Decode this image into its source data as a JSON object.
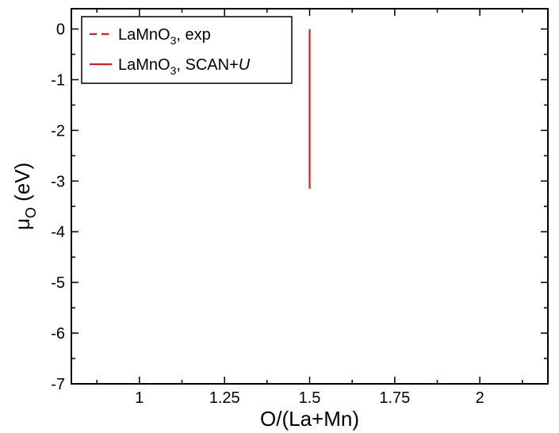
{
  "chart_data": {
    "type": "line",
    "xlabel": "O/(La+Mn)",
    "ylabel": "μ",
    "ylabel_sub": "O",
    "ylabel_unit": " (eV)",
    "xlim": [
      0.8,
      2.2
    ],
    "ylim": [
      -7,
      0.4
    ],
    "x_ticks": [
      1,
      1.25,
      1.5,
      1.75,
      2
    ],
    "x_tick_labels": [
      "1",
      "1.25",
      "1.5",
      "1.75",
      "2"
    ],
    "y_ticks": [
      0,
      -1,
      -2,
      -3,
      -4,
      -5,
      -6,
      -7
    ],
    "y_tick_labels": [
      "0",
      "-1",
      "-2",
      "-3",
      "-4",
      "-5",
      "-6",
      "-7"
    ],
    "grid": false,
    "legend_position": "top-left",
    "series": [
      {
        "name": "LaMnO3, exp",
        "label_parts": [
          "LaMnO",
          "3",
          ", exp",
          ""
        ],
        "color": "#e31a1c",
        "style": "dashed",
        "x": [],
        "y": []
      },
      {
        "name": "LaMnO3, SCAN+U",
        "label_parts": [
          "LaMnO",
          "3",
          ", SCAN+",
          "U"
        ],
        "color": "#e31a1c",
        "style": "solid",
        "x": [
          1.5,
          1.5
        ],
        "y": [
          0,
          -3.15
        ]
      }
    ]
  }
}
